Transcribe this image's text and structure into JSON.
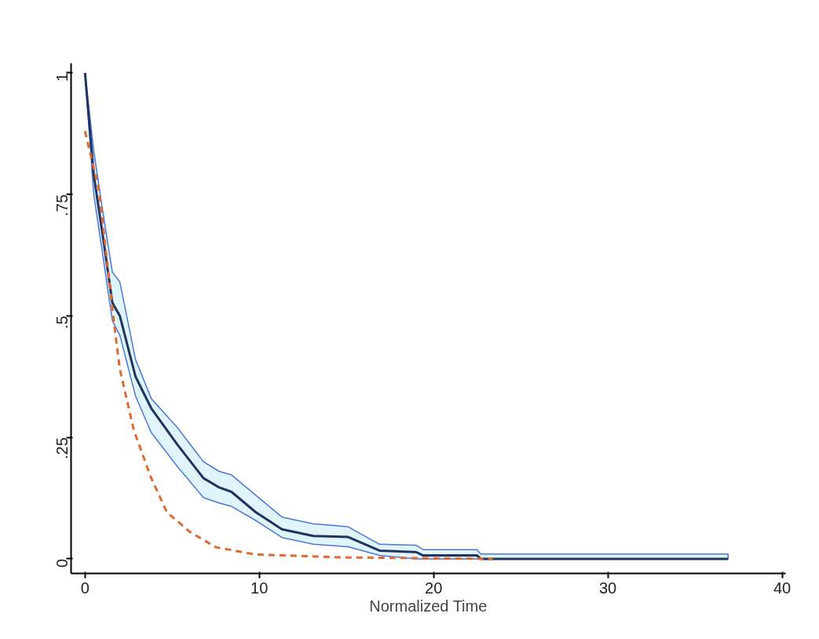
{
  "chart_data": {
    "type": "line",
    "xlabel": "Normalized Time",
    "xlim": [
      -0.8,
      40.2
    ],
    "ylim": [
      -0.03,
      1.02
    ],
    "xticks": [
      0,
      10,
      20,
      30,
      40
    ],
    "yticks": [
      {
        "value": 0,
        "label": "0"
      },
      {
        "value": 0.25,
        "label": ".25"
      },
      {
        "value": 0.5,
        "label": ".5"
      },
      {
        "value": 0.75,
        "label": ".75"
      },
      {
        "value": 1,
        "label": "1"
      }
    ],
    "grid": false,
    "series": [
      {
        "color": "#1f3560",
        "x": [
          0,
          0.5,
          1,
          1.57,
          2.0,
          2.9,
          3.8,
          5.3,
          6.8,
          7.7,
          8.4,
          9.8,
          11.3,
          13.1,
          15.1,
          16.9,
          19.0,
          19.4,
          22.5,
          22.7,
          36.9
        ],
        "values": [
          1,
          0.79,
          0.67,
          0.527,
          0.5,
          0.375,
          0.31,
          0.235,
          0.166,
          0.147,
          0.138,
          0.096,
          0.061,
          0.047,
          0.045,
          0.017,
          0.014,
          0.007,
          0.007,
          0.0,
          0.0
        ],
        "lower": [
          1,
          0.75,
          0.63,
          0.49,
          0.46,
          0.335,
          0.26,
          0.19,
          0.126,
          0.115,
          0.108,
          0.079,
          0.044,
          0.03,
          0.025,
          0.007,
          0.0,
          0.0,
          0.0,
          0.0,
          0.0
        ],
        "upper": [
          1,
          0.84,
          0.72,
          0.59,
          0.57,
          0.41,
          0.33,
          0.27,
          0.2,
          0.18,
          0.173,
          0.131,
          0.086,
          0.072,
          0.066,
          0.03,
          0.028,
          0.019,
          0.019,
          0.01,
          0.01
        ]
      },
      {
        "line_style": "dashed",
        "color": "#e06a30",
        "x": [
          0,
          0.8,
          1.65,
          2.0,
          2.8,
          3.8,
          4.7,
          6.0,
          7.5,
          9.8,
          14.9,
          23.4
        ],
        "values": [
          0.88,
          0.76,
          0.49,
          0.39,
          0.265,
          0.166,
          0.096,
          0.056,
          0.024,
          0.009,
          0.003,
          0.0
        ]
      }
    ]
  }
}
